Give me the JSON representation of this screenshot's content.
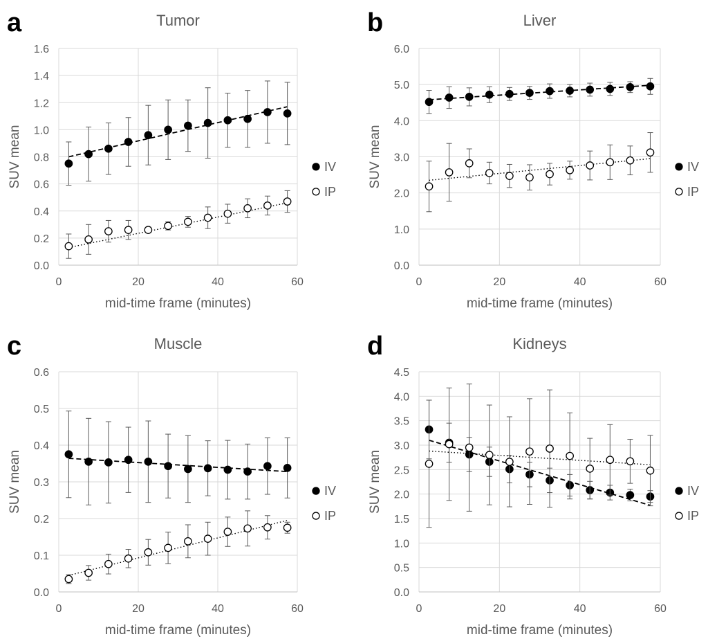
{
  "chart_data": [
    {
      "type": "scatter",
      "panel": "a",
      "title": "Tumor",
      "xlabel": "mid-time frame (minutes)",
      "ylabel": "SUV mean",
      "xlim": [
        0,
        60
      ],
      "ylim": [
        0,
        1.6
      ],
      "xticks": [
        0,
        20,
        40,
        60
      ],
      "yticks": [
        0.0,
        0.2,
        0.4,
        0.6,
        0.8,
        1.0,
        1.2,
        1.4,
        1.6
      ],
      "ytick_labels": [
        "0.0",
        "0.2",
        "0.4",
        "0.6",
        "0.8",
        "1.0",
        "1.2",
        "1.4",
        "1.6"
      ],
      "grid": true,
      "legend": "right",
      "x": [
        2.5,
        7.5,
        12.5,
        17.5,
        22.5,
        27.5,
        32.5,
        37.5,
        42.5,
        47.5,
        52.5,
        57.5
      ],
      "series": [
        {
          "name": "IV",
          "marker": "filled-circle",
          "trendline": "dashed",
          "values": [
            0.75,
            0.82,
            0.86,
            0.91,
            0.96,
            1.0,
            1.03,
            1.05,
            1.07,
            1.08,
            1.13,
            1.12
          ],
          "error": [
            0.16,
            0.2,
            0.19,
            0.18,
            0.22,
            0.22,
            0.19,
            0.26,
            0.2,
            0.21,
            0.23,
            0.23
          ],
          "trend": [
            0.8,
            1.17
          ]
        },
        {
          "name": "IP",
          "marker": "open-circle",
          "trendline": "dotted",
          "values": [
            0.14,
            0.19,
            0.25,
            0.26,
            0.26,
            0.29,
            0.32,
            0.35,
            0.38,
            0.42,
            0.44,
            0.47
          ],
          "error": [
            0.09,
            0.11,
            0.08,
            0.07,
            0.02,
            0.03,
            0.04,
            0.08,
            0.07,
            0.07,
            0.07,
            0.08
          ],
          "trend": [
            0.13,
            0.46
          ]
        }
      ]
    },
    {
      "type": "scatter",
      "panel": "b",
      "title": "Liver",
      "xlabel": "mid-time frame (minutes)",
      "ylabel": "SUV mean",
      "xlim": [
        0,
        60
      ],
      "ylim": [
        0,
        6
      ],
      "xticks": [
        0,
        20,
        40,
        60
      ],
      "yticks": [
        0,
        1,
        2,
        3,
        4,
        5,
        6
      ],
      "ytick_labels": [
        "0.0",
        "1.0",
        "2.0",
        "3.0",
        "4.0",
        "5.0",
        "6.0"
      ],
      "grid": true,
      "legend": "right",
      "x": [
        2.5,
        7.5,
        12.5,
        17.5,
        22.5,
        27.5,
        32.5,
        37.5,
        42.5,
        47.5,
        52.5,
        57.5
      ],
      "series": [
        {
          "name": "IV",
          "marker": "filled-circle",
          "trendline": "dashed",
          "values": [
            4.52,
            4.64,
            4.66,
            4.72,
            4.74,
            4.77,
            4.82,
            4.83,
            4.86,
            4.88,
            4.93,
            4.95
          ],
          "error": [
            0.32,
            0.3,
            0.25,
            0.22,
            0.18,
            0.18,
            0.2,
            0.17,
            0.18,
            0.18,
            0.15,
            0.22
          ],
          "trend": [
            4.58,
            4.98
          ]
        },
        {
          "name": "IP",
          "marker": "open-circle",
          "trendline": "dotted",
          "values": [
            2.18,
            2.57,
            2.82,
            2.55,
            2.47,
            2.43,
            2.52,
            2.63,
            2.76,
            2.85,
            2.9,
            3.12
          ],
          "error": [
            0.7,
            0.8,
            0.4,
            0.3,
            0.32,
            0.35,
            0.3,
            0.25,
            0.4,
            0.48,
            0.4,
            0.55
          ],
          "trend": [
            2.35,
            2.95
          ]
        }
      ]
    },
    {
      "type": "scatter",
      "panel": "c",
      "title": "Muscle",
      "xlabel": "mid-time frame (minutes)",
      "ylabel": "SUV mean",
      "xlim": [
        0,
        60
      ],
      "ylim": [
        0,
        0.6
      ],
      "xticks": [
        0,
        20,
        40,
        60
      ],
      "yticks": [
        0.0,
        0.1,
        0.2,
        0.3,
        0.4,
        0.5,
        0.6
      ],
      "ytick_labels": [
        "0.0",
        "0.1",
        "0.2",
        "0.3",
        "0.4",
        "0.5",
        "0.6"
      ],
      "grid": true,
      "legend": "right",
      "x": [
        2.5,
        7.5,
        12.5,
        17.5,
        22.5,
        27.5,
        32.5,
        37.5,
        42.5,
        47.5,
        52.5,
        57.5
      ],
      "series": [
        {
          "name": "IV",
          "marker": "filled-circle",
          "trendline": "dashed",
          "values": [
            0.375,
            0.355,
            0.353,
            0.36,
            0.355,
            0.343,
            0.335,
            0.337,
            0.333,
            0.328,
            0.343,
            0.338
          ],
          "error": [
            0.118,
            0.118,
            0.111,
            0.089,
            0.111,
            0.087,
            0.091,
            0.075,
            0.08,
            0.075,
            0.077,
            0.082
          ],
          "trend": [
            0.364,
            0.328
          ]
        },
        {
          "name": "IP",
          "marker": "open-circle",
          "trendline": "dotted",
          "values": [
            0.035,
            0.052,
            0.076,
            0.091,
            0.108,
            0.12,
            0.138,
            0.145,
            0.164,
            0.173,
            0.176,
            0.175
          ],
          "error": [
            0.012,
            0.02,
            0.027,
            0.025,
            0.035,
            0.043,
            0.045,
            0.045,
            0.04,
            0.048,
            0.032,
            0.015
          ],
          "trend": [
            0.045,
            0.195
          ]
        }
      ]
    },
    {
      "type": "scatter",
      "panel": "d",
      "title": "Kidneys",
      "xlabel": "mid-time frame (minutes)",
      "ylabel": "SUV mean",
      "xlim": [
        0,
        60
      ],
      "ylim": [
        0,
        4.5
      ],
      "xticks": [
        0,
        20,
        40,
        60
      ],
      "yticks": [
        0.0,
        0.5,
        1.0,
        1.5,
        2.0,
        2.5,
        3.0,
        3.5,
        4.0,
        4.5
      ],
      "ytick_labels": [
        "0.0",
        "0.5",
        "1.0",
        "1.5",
        "2.0",
        "2.5",
        "3.0",
        "3.5",
        "4.0",
        "4.5"
      ],
      "grid": true,
      "legend": "right",
      "x": [
        2.5,
        7.5,
        12.5,
        17.5,
        22.5,
        27.5,
        32.5,
        37.5,
        42.5,
        47.5,
        52.5,
        57.5
      ],
      "series": [
        {
          "name": "IV",
          "marker": "filled-circle",
          "trendline": "dashed",
          "values": [
            3.32,
            3.05,
            2.81,
            2.66,
            2.51,
            2.4,
            2.28,
            2.18,
            2.08,
            2.03,
            1.98,
            1.95
          ],
          "error": [
            0.6,
            0.4,
            0.35,
            0.3,
            0.28,
            0.25,
            0.25,
            0.22,
            0.18,
            0.15,
            0.12,
            0.12
          ],
          "trend": [
            3.1,
            1.77
          ]
        },
        {
          "name": "IP",
          "marker": "open-circle",
          "trendline": "dotted",
          "values": [
            2.62,
            3.02,
            2.95,
            2.8,
            2.66,
            2.87,
            2.93,
            2.78,
            2.52,
            2.7,
            2.67,
            2.48
          ],
          "error": [
            1.3,
            1.15,
            1.3,
            1.02,
            0.92,
            1.08,
            1.2,
            0.88,
            0.62,
            0.72,
            0.45,
            0.72
          ],
          "trend": [
            2.88,
            2.6
          ]
        }
      ]
    }
  ]
}
